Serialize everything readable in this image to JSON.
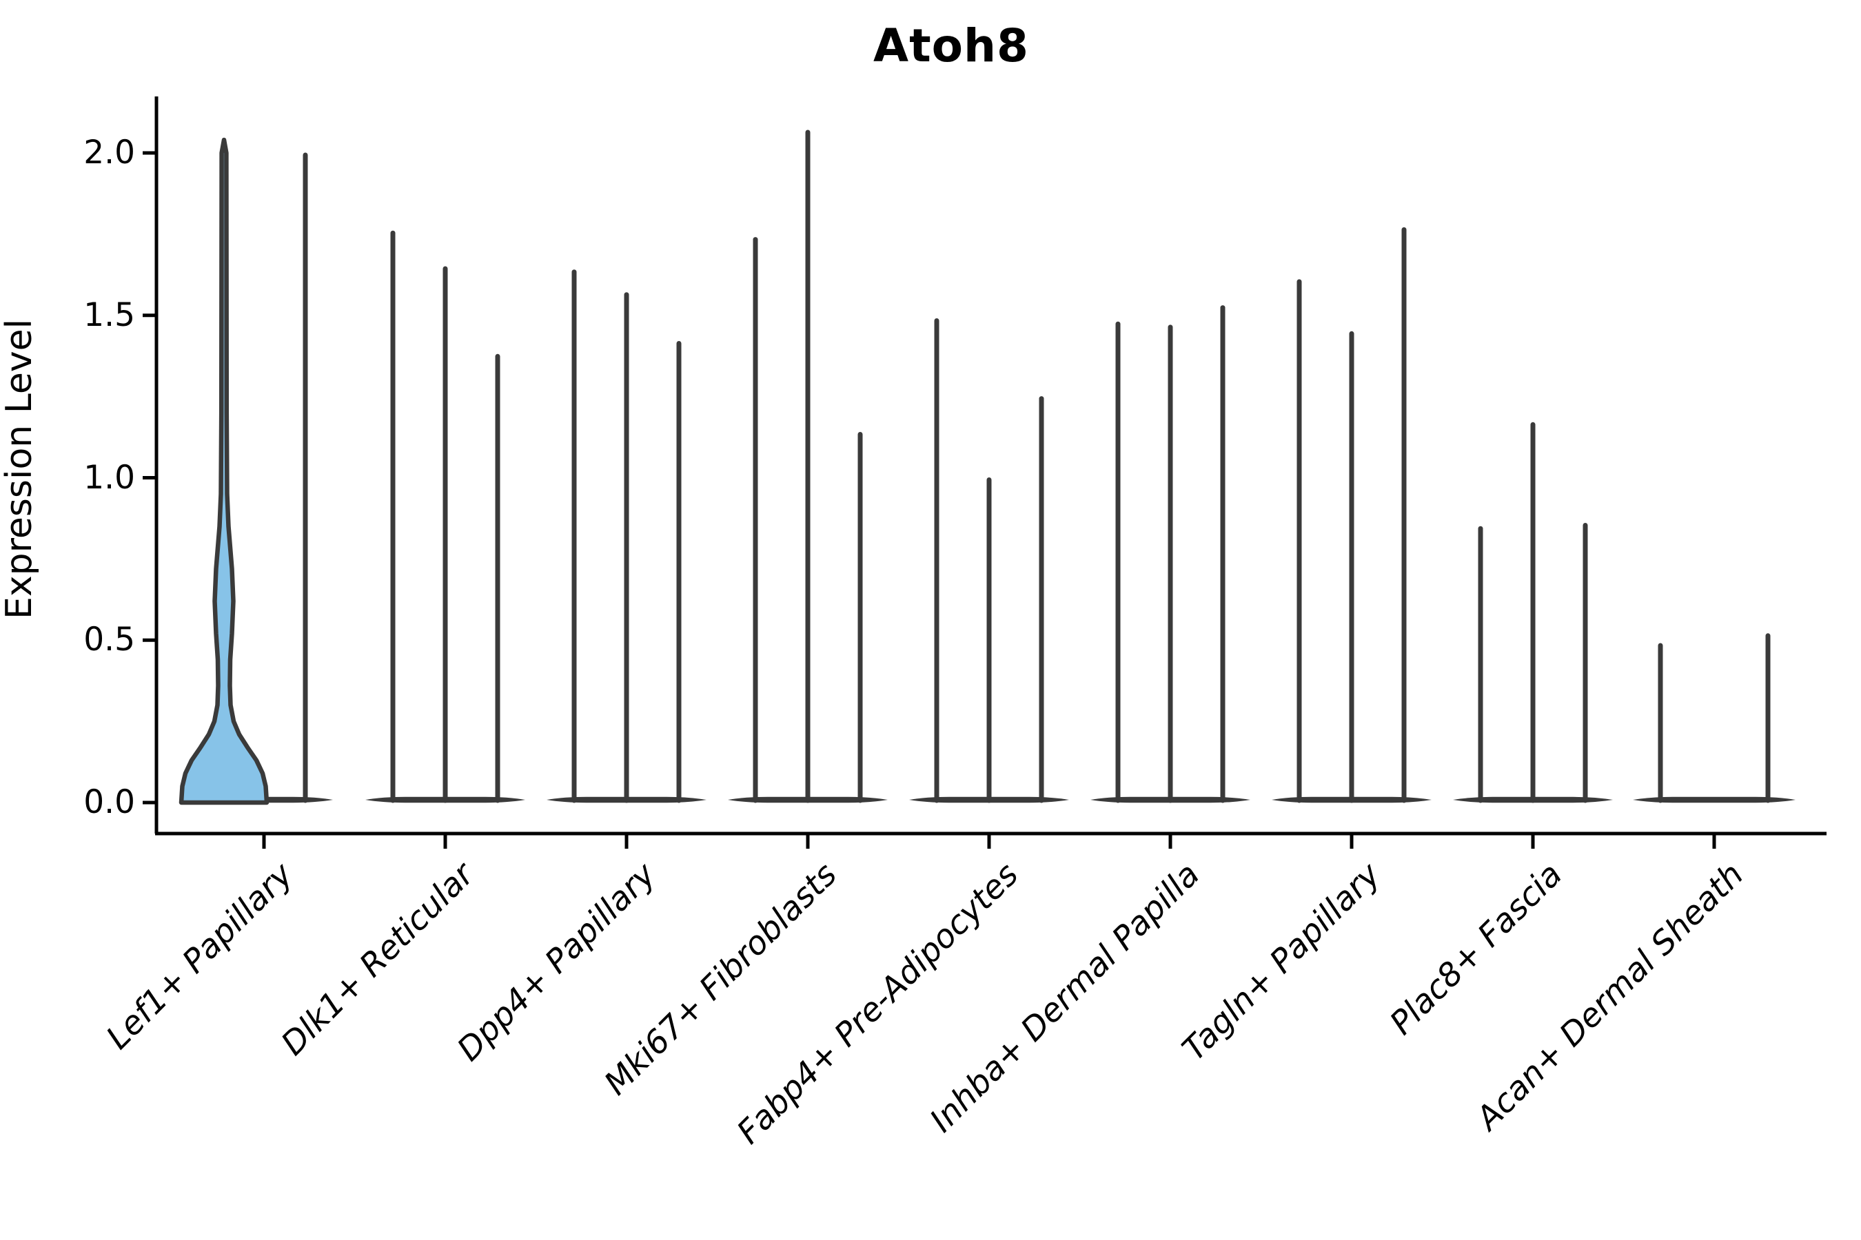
{
  "figure": {
    "title": "Atoh8",
    "background": "#ffffff"
  },
  "chart_data": {
    "type": "violin",
    "title": "Atoh8",
    "xlabel": "",
    "ylabel": "Expression Level",
    "ylim": [
      -0.1,
      2.17
    ],
    "yticks": [
      "0.0",
      "0.5",
      "1.0",
      "1.5",
      "2.0"
    ],
    "ytick_values": [
      0.0,
      0.5,
      1.0,
      1.5,
      2.0
    ],
    "grid": false,
    "legend": "none",
    "xtick_rotation_deg": 45,
    "categories": [
      "Lef1+ Papillary",
      "Dlk1+ Reticular",
      "Dpp4+ Papillary",
      "Mki67+ Fibroblasts",
      "Fabp4+ Pre-Adipocytes",
      "Inhba+ Dermal Papilla",
      "Tagln+ Papillary",
      "Plac8+ Fascia",
      "Acan+ Dermal Sheath"
    ],
    "groups": [
      {
        "category": "Lef1+ Papillary",
        "violins": [
          {
            "max": 2.04,
            "filled": true,
            "shape": "kde"
          },
          {
            "max": 2.0,
            "filled": false,
            "shape": "spike"
          }
        ],
        "slot_offsets": [
          -58,
          60
        ]
      },
      {
        "category": "Dlk1+ Reticular",
        "violins": [
          {
            "max": 1.76,
            "filled": false,
            "shape": "spike"
          },
          {
            "max": 1.65,
            "filled": false,
            "shape": "spike"
          },
          {
            "max": 1.38,
            "filled": false,
            "shape": "spike"
          }
        ],
        "slot_offsets": [
          -76,
          0,
          76
        ]
      },
      {
        "category": "Dpp4+ Papillary",
        "violins": [
          {
            "max": 1.64,
            "filled": false,
            "shape": "spike"
          },
          {
            "max": 1.57,
            "filled": false,
            "shape": "spike"
          },
          {
            "max": 1.42,
            "filled": false,
            "shape": "spike"
          }
        ],
        "slot_offsets": [
          -76,
          0,
          76
        ]
      },
      {
        "category": "Mki67+ Fibroblasts",
        "violins": [
          {
            "max": 1.74,
            "filled": false,
            "shape": "spike"
          },
          {
            "max": 2.07,
            "filled": false,
            "shape": "spike"
          },
          {
            "max": 1.14,
            "filled": false,
            "shape": "spike"
          }
        ],
        "slot_offsets": [
          -76,
          0,
          76
        ]
      },
      {
        "category": "Fabp4+ Pre-Adipocytes",
        "violins": [
          {
            "max": 1.49,
            "filled": false,
            "shape": "spike"
          },
          {
            "max": 1.0,
            "filled": false,
            "shape": "spike"
          },
          {
            "max": 1.25,
            "filled": false,
            "shape": "spike"
          }
        ],
        "slot_offsets": [
          -76,
          0,
          76
        ]
      },
      {
        "category": "Inhba+ Dermal Papilla",
        "violins": [
          {
            "max": 1.48,
            "filled": false,
            "shape": "spike"
          },
          {
            "max": 1.47,
            "filled": false,
            "shape": "spike"
          },
          {
            "max": 1.53,
            "filled": false,
            "shape": "spike"
          }
        ],
        "slot_offsets": [
          -76,
          0,
          76
        ]
      },
      {
        "category": "Tagln+ Papillary",
        "violins": [
          {
            "max": 1.61,
            "filled": false,
            "shape": "spike"
          },
          {
            "max": 1.45,
            "filled": false,
            "shape": "spike"
          },
          {
            "max": 1.77,
            "filled": false,
            "shape": "spike"
          }
        ],
        "slot_offsets": [
          -76,
          0,
          76
        ]
      },
      {
        "category": "Plac8+ Fascia",
        "violins": [
          {
            "max": 0.85,
            "filled": false,
            "shape": "spike"
          },
          {
            "max": 1.17,
            "filled": false,
            "shape": "spike"
          },
          {
            "max": 0.86,
            "filled": false,
            "shape": "spike"
          }
        ],
        "slot_offsets": [
          -76,
          0,
          76
        ]
      },
      {
        "category": "Acan+ Dermal Sheath",
        "violins": [
          {
            "max": 0.49,
            "filled": false,
            "shape": "spike"
          },
          {
            "max": 0.52,
            "filled": false,
            "shape": "spike"
          }
        ],
        "slot_offsets": [
          -78,
          78
        ]
      }
    ],
    "colors": {
      "filled_violin": "#87c3e8",
      "violin_stroke": "#3a3a3a",
      "axis": "#000000",
      "text": "#000000"
    }
  }
}
